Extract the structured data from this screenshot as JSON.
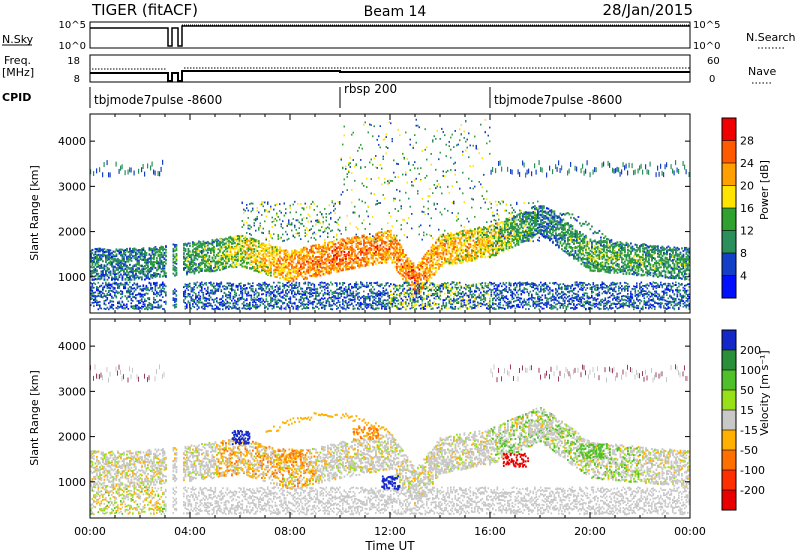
{
  "header": {
    "station": "TIGER (fitACF)",
    "beam": "Beam 14",
    "date": "28/Jan/2015"
  },
  "top_panels": {
    "nsky_label": "N.Sky",
    "nsky_ticks": [
      "10^5",
      "10^0"
    ],
    "nsearch_label": "N.Search",
    "nsearch_ticks": [
      "10^5",
      "10^0"
    ],
    "freq_label_1": "Freq.",
    "freq_label_2": "[MHz]",
    "freq_ticks": [
      "18",
      "8"
    ],
    "nave_label": "Nave",
    "nave_ticks": [
      "60",
      "0"
    ],
    "cpid_label": "CPID",
    "cpid_segments": [
      {
        "label": "tbjmode7pulse -8600",
        "start": "00:00",
        "end": "10:00"
      },
      {
        "label": "rbsp 200",
        "start": "10:00",
        "end": "16:00"
      },
      {
        "label": "tbjmode7pulse -8600",
        "start": "16:00",
        "end": "24:00"
      }
    ]
  },
  "x_axis": {
    "title": "Time UT",
    "ticks": [
      "00:00",
      "04:00",
      "08:00",
      "12:00",
      "16:00",
      "20:00",
      "00:00"
    ]
  },
  "power_panel": {
    "ylabel": "Slant Range [km]",
    "yticks": [
      "4000",
      "3000",
      "2000",
      "1000"
    ],
    "cbar_title": "Power [dB]",
    "cbar_labels": [
      "28",
      "24",
      "20",
      "16",
      "12",
      "8",
      "4"
    ],
    "cbar_colors": [
      "#f00000",
      "#ff5a00",
      "#ffa000",
      "#ffe400",
      "#2ea12e",
      "#2a8f5a",
      "#1440c8",
      "#0010ff"
    ]
  },
  "velocity_panel": {
    "ylabel": "Slant Range [km]",
    "yticks": [
      "4000",
      "3000",
      "2000",
      "1000"
    ],
    "cbar_title": "Velocity [m s⁻¹]",
    "cbar_labels": [
      "200",
      "100",
      "50",
      "15",
      "-15",
      "-50",
      "-100",
      "-200"
    ],
    "cbar_colors": [
      "#1428c8",
      "#2a8f3a",
      "#4fbf2a",
      "#98e018",
      "#c8c8c8",
      "#ffb000",
      "#ff7000",
      "#ff3000",
      "#e80000"
    ]
  },
  "chart_data": [
    {
      "type": "heatmap",
      "title": "Beam 14",
      "xlabel": "Time UT",
      "ylabel": "Slant Range [km]",
      "xlim": [
        0,
        24
      ],
      "ylim": [
        200,
        4600
      ],
      "colorbar": {
        "label": "Power [dB]",
        "range": [
          0,
          32
        ]
      },
      "bands": [
        {
          "t": 0,
          "range": 1300,
          "power": 10
        },
        {
          "t": 2,
          "range": 1300,
          "power": 10
        },
        {
          "t": 5,
          "range": 1500,
          "power": 14
        },
        {
          "t": 6,
          "range": 1600,
          "power": 18
        },
        {
          "t": 8,
          "range": 1250,
          "power": 24
        },
        {
          "t": 10,
          "range": 1500,
          "power": 26
        },
        {
          "t": 12,
          "range": 1700,
          "power": 24
        },
        {
          "t": 13,
          "range": 900,
          "power": 26
        },
        {
          "t": 14,
          "range": 1600,
          "power": 22
        },
        {
          "t": 16,
          "range": 1800,
          "power": 20
        },
        {
          "t": 18,
          "range": 2300,
          "power": 10
        },
        {
          "t": 20,
          "range": 1500,
          "power": 14
        },
        {
          "t": 24,
          "range": 1300,
          "power": 12
        }
      ]
    },
    {
      "type": "heatmap",
      "title": "Beam 14",
      "xlabel": "Time UT",
      "ylabel": "Slant Range [km]",
      "xlim": [
        0,
        24
      ],
      "ylim": [
        200,
        4600
      ],
      "colorbar": {
        "label": "Velocity [m s⁻¹]",
        "range": [
          -200,
          200
        ]
      },
      "bands": [
        {
          "t": 6,
          "range": 2000,
          "velocity": 200
        },
        {
          "t": 8,
          "range": 1600,
          "velocity": -50
        },
        {
          "t": 11,
          "range": 2100,
          "velocity": -50
        },
        {
          "t": 12,
          "range": 1000,
          "velocity": 200
        },
        {
          "t": 14,
          "range": 1400,
          "velocity": 0
        },
        {
          "t": 17,
          "range": 1500,
          "velocity": -200
        },
        {
          "t": 18,
          "range": 2200,
          "velocity": 0
        },
        {
          "t": 20,
          "range": 1700,
          "velocity": 50
        }
      ]
    }
  ]
}
